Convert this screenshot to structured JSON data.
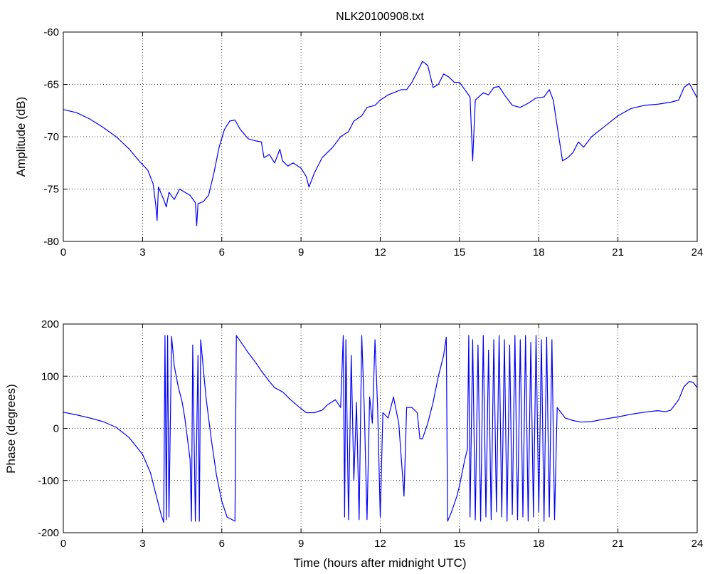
{
  "chart_data": [
    {
      "type": "line",
      "title": "NLK20100908.txt",
      "xlabel": "",
      "ylabel": "Amplitude (dB)",
      "xlim": [
        0,
        24
      ],
      "ylim": [
        -80,
        -60
      ],
      "xticks": [
        0,
        3,
        6,
        9,
        12,
        15,
        18,
        21,
        24
      ],
      "yticks": [
        -80,
        -75,
        -70,
        -65,
        -60
      ],
      "grid": true,
      "line_color": "#0000ff",
      "series": [
        {
          "values": [
            [
              0,
              -67.4
            ],
            [
              0.5,
              -67.7
            ],
            [
              1.0,
              -68.3
            ],
            [
              1.5,
              -69.1
            ],
            [
              2.0,
              -70.0
            ],
            [
              2.5,
              -71.2
            ],
            [
              2.9,
              -72.4
            ],
            [
              3.2,
              -73.2
            ],
            [
              3.4,
              -74.5
            ],
            [
              3.5,
              -76.5
            ],
            [
              3.55,
              -78.0
            ],
            [
              3.6,
              -74.8
            ],
            [
              3.8,
              -76.0
            ],
            [
              3.9,
              -76.7
            ],
            [
              4.0,
              -75.3
            ],
            [
              4.2,
              -76.0
            ],
            [
              4.4,
              -75.0
            ],
            [
              4.6,
              -75.3
            ],
            [
              4.8,
              -75.6
            ],
            [
              5.0,
              -76.3
            ],
            [
              5.05,
              -78.5
            ],
            [
              5.1,
              -76.4
            ],
            [
              5.3,
              -76.2
            ],
            [
              5.5,
              -75.6
            ],
            [
              5.7,
              -73.5
            ],
            [
              5.9,
              -71.0
            ],
            [
              6.1,
              -69.3
            ],
            [
              6.3,
              -68.5
            ],
            [
              6.5,
              -68.4
            ],
            [
              6.7,
              -69.3
            ],
            [
              7.0,
              -70.2
            ],
            [
              7.3,
              -70.4
            ],
            [
              7.5,
              -70.5
            ],
            [
              7.6,
              -72.0
            ],
            [
              7.8,
              -71.7
            ],
            [
              8.0,
              -72.5
            ],
            [
              8.2,
              -71.2
            ],
            [
              8.3,
              -72.3
            ],
            [
              8.5,
              -72.8
            ],
            [
              8.7,
              -72.5
            ],
            [
              9.0,
              -73.0
            ],
            [
              9.2,
              -73.8
            ],
            [
              9.3,
              -74.8
            ],
            [
              9.5,
              -73.5
            ],
            [
              9.8,
              -72.0
            ],
            [
              10.2,
              -71.0
            ],
            [
              10.5,
              -70.0
            ],
            [
              10.8,
              -69.5
            ],
            [
              11.0,
              -68.5
            ],
            [
              11.3,
              -68.0
            ],
            [
              11.5,
              -67.2
            ],
            [
              11.8,
              -67.0
            ],
            [
              12.0,
              -66.5
            ],
            [
              12.3,
              -66.0
            ],
            [
              12.5,
              -65.8
            ],
            [
              12.8,
              -65.5
            ],
            [
              13.0,
              -65.5
            ],
            [
              13.2,
              -64.8
            ],
            [
              13.4,
              -63.8
            ],
            [
              13.6,
              -62.8
            ],
            [
              13.8,
              -63.2
            ],
            [
              14.0,
              -65.3
            ],
            [
              14.2,
              -65.0
            ],
            [
              14.4,
              -64.0
            ],
            [
              14.6,
              -64.3
            ],
            [
              14.8,
              -64.8
            ],
            [
              15.0,
              -64.8
            ],
            [
              15.2,
              -65.5
            ],
            [
              15.4,
              -66.2
            ],
            [
              15.5,
              -72.3
            ],
            [
              15.6,
              -66.5
            ],
            [
              15.9,
              -65.8
            ],
            [
              16.1,
              -66.0
            ],
            [
              16.3,
              -65.3
            ],
            [
              16.5,
              -65.2
            ],
            [
              16.7,
              -66.0
            ],
            [
              17.0,
              -67.0
            ],
            [
              17.3,
              -67.2
            ],
            [
              17.6,
              -66.8
            ],
            [
              17.9,
              -66.3
            ],
            [
              18.2,
              -66.2
            ],
            [
              18.4,
              -65.5
            ],
            [
              18.55,
              -66.5
            ],
            [
              18.7,
              -69.0
            ],
            [
              18.9,
              -72.3
            ],
            [
              19.1,
              -72.0
            ],
            [
              19.3,
              -71.5
            ],
            [
              19.5,
              -70.5
            ],
            [
              19.7,
              -71.0
            ],
            [
              20.0,
              -70.0
            ],
            [
              20.5,
              -69.0
            ],
            [
              21.0,
              -68.0
            ],
            [
              21.5,
              -67.3
            ],
            [
              22.0,
              -67.0
            ],
            [
              22.5,
              -66.9
            ],
            [
              23.0,
              -66.7
            ],
            [
              23.3,
              -66.5
            ],
            [
              23.5,
              -65.3
            ],
            [
              23.7,
              -64.9
            ],
            [
              24.0,
              -66.3
            ]
          ]
        }
      ]
    },
    {
      "type": "line",
      "title": "",
      "xlabel": "Time (hours after midnight UTC)",
      "ylabel": "Phase (degrees)",
      "xlim": [
        0,
        24
      ],
      "ylim": [
        -200,
        200
      ],
      "xticks": [
        0,
        3,
        6,
        9,
        12,
        15,
        18,
        21,
        24
      ],
      "yticks": [
        -200,
        -100,
        0,
        100,
        200
      ],
      "grid": true,
      "line_color": "#0000ff",
      "series": [
        {
          "values": [
            [
              0,
              31
            ],
            [
              0.5,
              26
            ],
            [
              1.0,
              20
            ],
            [
              1.5,
              13
            ],
            [
              2.0,
              2
            ],
            [
              2.5,
              -18
            ],
            [
              3.0,
              -50
            ],
            [
              3.3,
              -85
            ],
            [
              3.5,
              -125
            ],
            [
              3.7,
              -165
            ],
            [
              3.8,
              -180
            ],
            [
              3.85,
              178
            ],
            [
              3.9,
              -175
            ],
            [
              3.95,
              178
            ],
            [
              4.0,
              -170
            ],
            [
              4.1,
              176
            ],
            [
              4.2,
              120
            ],
            [
              4.35,
              80
            ],
            [
              4.5,
              50
            ],
            [
              4.6,
              20
            ],
            [
              4.7,
              -20
            ],
            [
              4.8,
              -60
            ],
            [
              4.85,
              -178
            ],
            [
              4.9,
              160
            ],
            [
              5.0,
              -178
            ],
            [
              5.1,
              140
            ],
            [
              5.15,
              -178
            ],
            [
              5.2,
              170
            ],
            [
              5.4,
              60
            ],
            [
              5.6,
              -20
            ],
            [
              5.8,
              -90
            ],
            [
              6.0,
              -140
            ],
            [
              6.2,
              -170
            ],
            [
              6.5,
              -178
            ],
            [
              6.55,
              178
            ],
            [
              6.8,
              160
            ],
            [
              7.0,
              145
            ],
            [
              7.3,
              125
            ],
            [
              7.5,
              110
            ],
            [
              7.8,
              90
            ],
            [
              8.0,
              78
            ],
            [
              8.3,
              70
            ],
            [
              8.6,
              55
            ],
            [
              8.9,
              42
            ],
            [
              9.2,
              30
            ],
            [
              9.5,
              30
            ],
            [
              9.8,
              35
            ],
            [
              10.0,
              45
            ],
            [
              10.3,
              55
            ],
            [
              10.5,
              40
            ],
            [
              10.6,
              178
            ],
            [
              10.65,
              -170
            ],
            [
              10.7,
              170
            ],
            [
              10.8,
              -175
            ],
            [
              10.9,
              140
            ],
            [
              11.0,
              -100
            ],
            [
              11.1,
              50
            ],
            [
              11.2,
              -175
            ],
            [
              11.3,
              178
            ],
            [
              11.4,
              30
            ],
            [
              11.5,
              -175
            ],
            [
              11.6,
              60
            ],
            [
              11.7,
              10
            ],
            [
              11.8,
              170
            ],
            [
              11.9,
              40
            ],
            [
              12.0,
              -170
            ],
            [
              12.1,
              30
            ],
            [
              12.3,
              20
            ],
            [
              12.5,
              60
            ],
            [
              12.7,
              10
            ],
            [
              12.9,
              -130
            ],
            [
              13.0,
              40
            ],
            [
              13.2,
              40
            ],
            [
              13.4,
              30
            ],
            [
              13.5,
              -20
            ],
            [
              13.6,
              -20
            ],
            [
              13.8,
              10
            ],
            [
              14.0,
              50
            ],
            [
              14.2,
              100
            ],
            [
              14.4,
              140
            ],
            [
              14.5,
              175
            ],
            [
              14.55,
              -178
            ],
            [
              14.7,
              -160
            ],
            [
              14.9,
              -130
            ],
            [
              15.0,
              -110
            ],
            [
              15.2,
              -60
            ],
            [
              15.3,
              -40
            ],
            [
              15.35,
              178
            ],
            [
              15.4,
              -170
            ],
            [
              15.5,
              170
            ],
            [
              15.6,
              -175
            ],
            [
              15.7,
              160
            ],
            [
              15.8,
              -178
            ],
            [
              15.9,
              178
            ],
            [
              16.0,
              -170
            ],
            [
              16.1,
              150
            ],
            [
              16.2,
              -175
            ],
            [
              16.3,
              170
            ],
            [
              16.4,
              -160
            ],
            [
              16.5,
              178
            ],
            [
              16.6,
              -170
            ],
            [
              16.7,
              170
            ],
            [
              16.8,
              -178
            ],
            [
              16.9,
              160
            ],
            [
              17.0,
              -165
            ],
            [
              17.1,
              178
            ],
            [
              17.2,
              -175
            ],
            [
              17.3,
              170
            ],
            [
              17.4,
              -170
            ],
            [
              17.5,
              178
            ],
            [
              17.6,
              -178
            ],
            [
              17.7,
              165
            ],
            [
              17.8,
              -170
            ],
            [
              17.9,
              178
            ],
            [
              18.0,
              -160
            ],
            [
              18.1,
              170
            ],
            [
              18.2,
              -178
            ],
            [
              18.3,
              175
            ],
            [
              18.4,
              -170
            ],
            [
              18.5,
              170
            ],
            [
              18.6,
              -175
            ],
            [
              18.7,
              40
            ],
            [
              19.0,
              20
            ],
            [
              19.3,
              15
            ],
            [
              19.6,
              12
            ],
            [
              20.0,
              13
            ],
            [
              20.5,
              18
            ],
            [
              21.0,
              22
            ],
            [
              21.5,
              27
            ],
            [
              22.0,
              31
            ],
            [
              22.5,
              34
            ],
            [
              22.8,
              32
            ],
            [
              23.0,
              35
            ],
            [
              23.3,
              55
            ],
            [
              23.5,
              80
            ],
            [
              23.7,
              90
            ],
            [
              23.85,
              88
            ],
            [
              24.0,
              78
            ]
          ]
        }
      ]
    }
  ]
}
